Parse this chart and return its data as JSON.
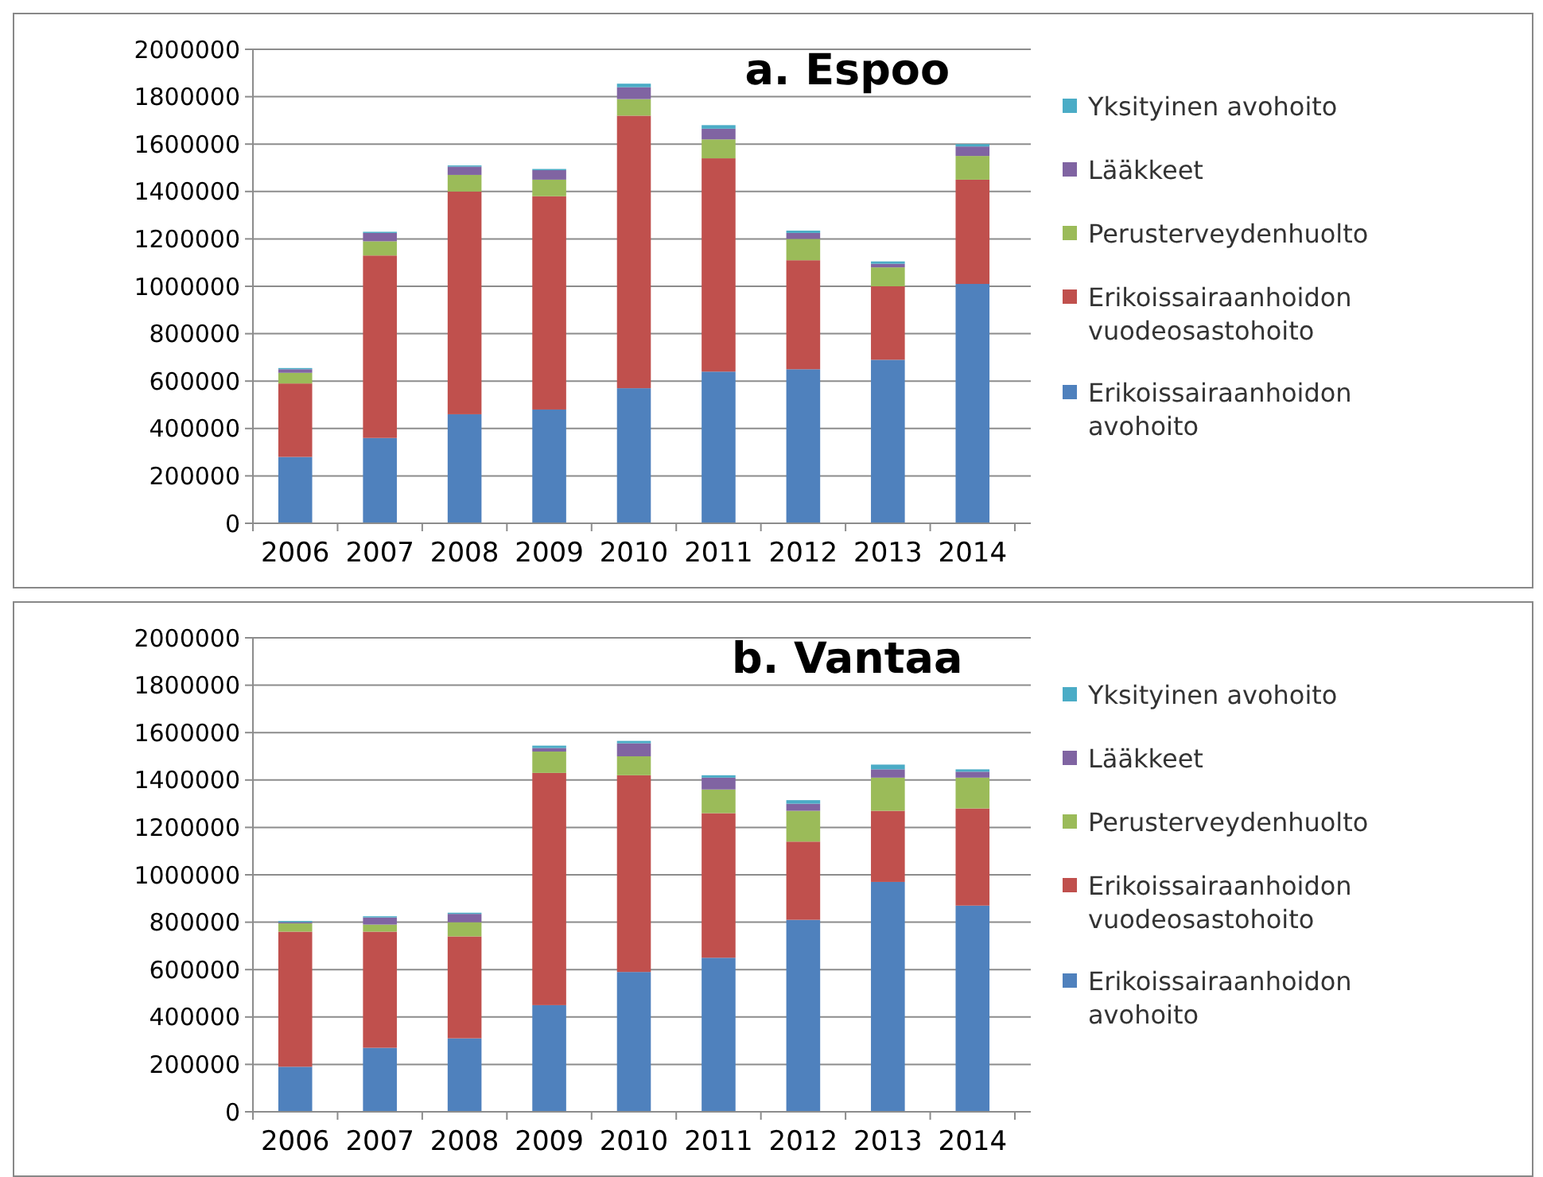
{
  "chart_data": [
    {
      "type": "bar",
      "title": "a. Espoo",
      "stacked": true,
      "grid": "y",
      "legend": "right",
      "categories": [
        "2006",
        "2007",
        "2008",
        "2009",
        "2010",
        "2011",
        "2012",
        "2013",
        "2014"
      ],
      "ylim": [
        0,
        2000000
      ],
      "yticks": [
        0,
        200000,
        400000,
        600000,
        800000,
        1000000,
        1200000,
        1400000,
        1600000,
        1800000,
        2000000
      ],
      "series": [
        {
          "name": "Erikoissairaanhoidon avohoito",
          "color": "#4f81bd",
          "values": [
            280000,
            360000,
            460000,
            480000,
            570000,
            640000,
            650000,
            690000,
            1010000
          ]
        },
        {
          "name": "Erikoissairaanhoidon vuodeosastohoito",
          "color": "#c0504d",
          "values": [
            310000,
            770000,
            940000,
            900000,
            1150000,
            900000,
            460000,
            310000,
            440000
          ]
        },
        {
          "name": "Perusterveydenhuolto",
          "color": "#9bbb59",
          "values": [
            45000,
            60000,
            70000,
            70000,
            70000,
            80000,
            90000,
            80000,
            100000
          ]
        },
        {
          "name": "Lääkkeet",
          "color": "#8064a2",
          "values": [
            15000,
            35000,
            35000,
            40000,
            50000,
            45000,
            25000,
            15000,
            40000
          ]
        },
        {
          "name": "Yksityinen avohoito",
          "color": "#4bacc6",
          "values": [
            5000,
            5000,
            5000,
            5000,
            15000,
            15000,
            10000,
            10000,
            10000
          ]
        }
      ]
    },
    {
      "type": "bar",
      "title": "b. Vantaa",
      "stacked": true,
      "grid": "y",
      "legend": "right",
      "categories": [
        "2006",
        "2007",
        "2008",
        "2009",
        "2010",
        "2011",
        "2012",
        "2013",
        "2014"
      ],
      "ylim": [
        0,
        2000000
      ],
      "yticks": [
        0,
        200000,
        400000,
        600000,
        800000,
        1000000,
        1200000,
        1400000,
        1600000,
        1800000,
        2000000
      ],
      "series": [
        {
          "name": "Erikoissairaanhoidon avohoito",
          "color": "#4f81bd",
          "values": [
            190000,
            270000,
            310000,
            450000,
            590000,
            650000,
            810000,
            970000,
            870000
          ]
        },
        {
          "name": "Erikoissairaanhoidon vuodeosastohoito",
          "color": "#c0504d",
          "values": [
            570000,
            490000,
            430000,
            980000,
            830000,
            610000,
            330000,
            300000,
            410000
          ]
        },
        {
          "name": "Perusterveydenhuolto",
          "color": "#9bbb59",
          "values": [
            35000,
            30000,
            60000,
            90000,
            80000,
            100000,
            130000,
            140000,
            130000
          ]
        },
        {
          "name": "Lääkkeet",
          "color": "#8064a2",
          "values": [
            5000,
            30000,
            35000,
            15000,
            55000,
            50000,
            30000,
            35000,
            25000
          ]
        },
        {
          "name": "Yksityinen avohoito",
          "color": "#4bacc6",
          "values": [
            5000,
            5000,
            5000,
            10000,
            10000,
            10000,
            15000,
            20000,
            10000
          ]
        }
      ]
    }
  ]
}
